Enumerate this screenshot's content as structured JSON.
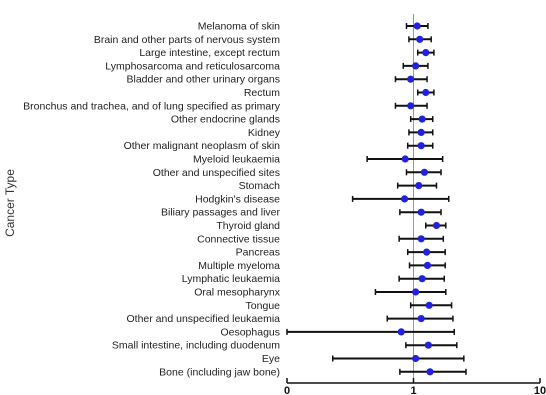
{
  "chart_data": {
    "type": "scatter",
    "title": "",
    "xlabel": "",
    "ylabel": "Cancer Type",
    "x_scale": "log",
    "xlim": [
      0.1,
      10
    ],
    "x_ticks": [
      0.1,
      1,
      10
    ],
    "x_tick_labels": [
      "0",
      "1",
      "10"
    ],
    "grid": false,
    "reference_line": 1,
    "point_color": "#2222dd",
    "categories": [
      "Melanoma of skin",
      "Brain and other parts of nervous system",
      "Large intestine, except rectum",
      "Lymphosarcoma and reticulosarcoma",
      "Bladder and other urinary organs",
      "Rectum",
      "Bronchus and trachea, and of lung specified as primary",
      "Other endocrine glands",
      "Kidney",
      "Other malignant neoplasm of skin",
      "Myeloid leukaemia",
      "Other and unspecified sites",
      "Stomach",
      "Hodgkin's disease",
      "Biliary passages and liver",
      "Thyroid gland",
      "Connective tissue",
      "Pancreas",
      "Multiple myeloma",
      "Lymphatic leukaemia",
      "Oral mesopharynx",
      "Tongue",
      "Other and unspecified leukaemia",
      "Oesophagus",
      "Small intestine, including duodenum",
      "Eye",
      "Bone (including jaw bone)"
    ],
    "estimates": [
      1.07,
      1.12,
      1.25,
      1.04,
      0.95,
      1.25,
      0.95,
      1.17,
      1.15,
      1.15,
      0.86,
      1.22,
      1.1,
      0.85,
      1.15,
      1.52,
      1.15,
      1.27,
      1.29,
      1.17,
      1.04,
      1.33,
      1.15,
      0.8,
      1.31,
      1.04,
      1.35
    ],
    "lower": [
      0.88,
      0.92,
      1.08,
      0.83,
      0.72,
      1.08,
      0.72,
      0.95,
      0.92,
      0.9,
      0.43,
      0.88,
      0.75,
      0.33,
      0.78,
      1.25,
      0.77,
      0.9,
      0.93,
      0.77,
      0.5,
      0.95,
      0.62,
      0.1,
      0.87,
      0.23,
      0.78
    ],
    "upper": [
      1.3,
      1.38,
      1.45,
      1.3,
      1.28,
      1.45,
      1.28,
      1.42,
      1.42,
      1.42,
      1.7,
      1.65,
      1.52,
      1.9,
      1.65,
      1.8,
      1.72,
      1.78,
      1.78,
      1.75,
      1.8,
      2.0,
      2.05,
      2.1,
      2.2,
      2.5,
      2.6
    ]
  }
}
